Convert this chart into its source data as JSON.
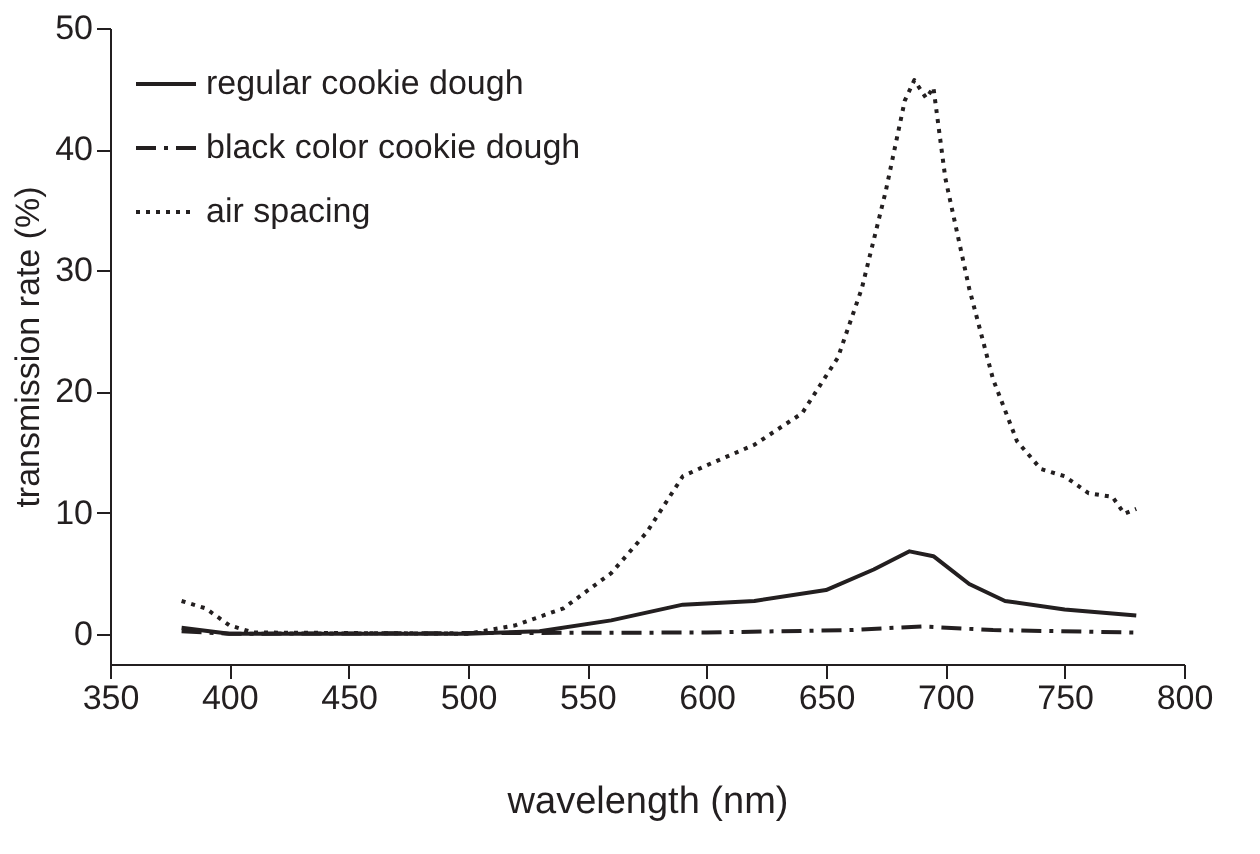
{
  "chart_data": {
    "type": "line",
    "xlabel": "wavelength (nm)",
    "ylabel": "transmission rate (%)",
    "xlim": [
      350,
      800
    ],
    "xticks": [
      350,
      400,
      450,
      500,
      550,
      600,
      650,
      700,
      750,
      800
    ],
    "ylim": [
      -2.5,
      50
    ],
    "yticks": [
      0,
      10,
      20,
      30,
      40,
      50
    ],
    "grid": false,
    "legend": "top left",
    "marker": "none",
    "series": [
      {
        "name": "regular cookie dough",
        "color": "#231f20",
        "line_style": "solid",
        "x": [
          380,
          400,
          500,
          530,
          560,
          590,
          620,
          650,
          670,
          685,
          695,
          710,
          725,
          750,
          780
        ],
        "values": [
          0.5,
          0,
          0,
          0.2,
          1.1,
          2.4,
          2.7,
          3.6,
          5.3,
          6.8,
          6.4,
          4.1,
          2.7,
          2.0,
          1.5
        ]
      },
      {
        "name": "black color cookie dough",
        "color": "#231f20",
        "line_style": "dashed",
        "x": [
          380,
          400,
          600,
          660,
          690,
          720,
          780
        ],
        "values": [
          0.2,
          0,
          0.1,
          0.3,
          0.6,
          0.3,
          0.1
        ]
      },
      {
        "name": "air spacing",
        "color": "#231f20",
        "line_style": "dotted",
        "x": [
          380,
          390,
          400,
          410,
          500,
          520,
          540,
          560,
          575,
          590,
          600,
          620,
          640,
          655,
          665,
          675,
          683,
          687,
          692,
          695,
          700,
          710,
          720,
          730,
          740,
          750,
          760,
          770,
          775,
          780
        ],
        "values": [
          2.7,
          2.1,
          0.7,
          0.1,
          0,
          0.7,
          2.1,
          5,
          8.4,
          13,
          13.9,
          15.6,
          18.2,
          22.8,
          28.5,
          36.5,
          44,
          45.7,
          44.2,
          45.1,
          37.6,
          28.5,
          21,
          15.9,
          13.6,
          13,
          11.6,
          11.3,
          9.9,
          10.3
        ]
      }
    ]
  }
}
